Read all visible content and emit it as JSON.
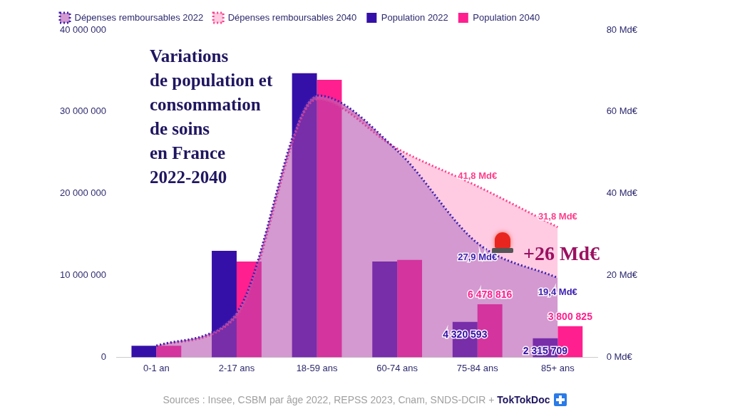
{
  "chart_data": {
    "type": "bar",
    "title": "Variations\nde population et\nconsommation\nde soins\nen France\n2022-2040",
    "annotations": [
      "+26 Md€"
    ],
    "source": "Sources : Insee, CSBM par âge 2022, REPSS 2023, Cnam, SNDS-DCIR +",
    "brand": "TokTokDoc",
    "categories": [
      "0-1 an",
      "2-17 ans",
      "18-59 ans",
      "60-74 ans",
      "75-84 ans",
      "85+ ans"
    ],
    "series": [
      {
        "name": "Population 2022",
        "type": "bar",
        "color": "#3510a8",
        "values": [
          1400000,
          13000000,
          34700000,
          11700000,
          4320593,
          2315709
        ],
        "value_labels": [
          null,
          null,
          null,
          null,
          "4 320 593",
          "2 315 709"
        ]
      },
      {
        "name": "Population 2040",
        "type": "bar",
        "color": "#ff1f8e",
        "values": [
          1400000,
          11700000,
          33900000,
          11900000,
          6478816,
          3800825
        ],
        "value_labels": [
          null,
          null,
          null,
          null,
          "6 478 816",
          "3 800 825"
        ]
      },
      {
        "name": "Dépenses remboursables 2022",
        "type": "line",
        "axis": "y2",
        "color": "#3b1fb0",
        "line_style": "dotted",
        "values": [
          2.8,
          11,
          64,
          50.5,
          27.9,
          19.4
        ],
        "value_labels": [
          null,
          null,
          null,
          null,
          "27,9 Md€",
          "19,4 Md€"
        ]
      },
      {
        "name": "Dépenses remboursables 2040",
        "type": "line",
        "axis": "y2",
        "color": "#ff3d8b",
        "line_style": "dotted",
        "values": [
          2.8,
          10,
          63,
          51,
          41.8,
          31.8
        ],
        "value_labels": [
          null,
          null,
          null,
          null,
          "41,8 Md€",
          "31,8 Md€"
        ]
      }
    ],
    "ylim": [
      0,
      40000000
    ],
    "yticks": [
      0,
      {
        "value": 10000000,
        "label": "10 000 000"
      },
      {
        "value": 20000000,
        "label": "20 000 000"
      },
      {
        "value": 30000000,
        "label": "30 000 000"
      },
      {
        "value": 40000000,
        "label": "40 000 000"
      }
    ],
    "y2lim": [
      0,
      80
    ],
    "y2ticks": [
      {
        "value": 0,
        "label": "0 Md€"
      },
      {
        "value": 20,
        "label": "20 Md€"
      },
      {
        "value": 40,
        "label": "40 Md€"
      },
      {
        "value": 60,
        "label": "60 Md€"
      },
      {
        "value": 80,
        "label": "80 Md€"
      }
    ],
    "grid": false,
    "legend": "top",
    "data_labels": true
  }
}
